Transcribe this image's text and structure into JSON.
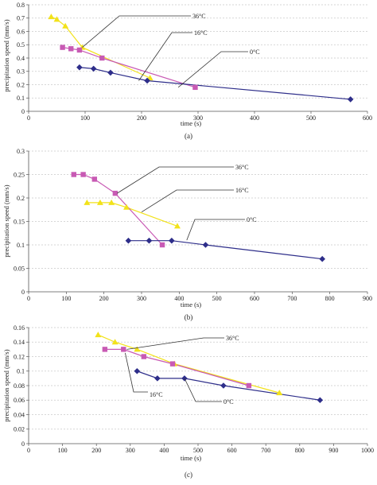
{
  "colors": {
    "deg0": "#2e2e8a",
    "deg16": "#c85ab4",
    "deg36": "#f2e21a",
    "connector16": "#d08040",
    "grid": "#c9c9c9",
    "axis": "#555555",
    "callout": "#333333"
  },
  "markers": {
    "0°C": "diamond",
    "16°C": "square",
    "36°C": "triangle"
  },
  "chart_data": [
    {
      "panel_label": "(a)",
      "type": "line",
      "xlabel": "time (s)",
      "ylabel": "precipitation speed (mm/s)",
      "xlim": [
        0,
        600
      ],
      "ylim": [
        0,
        0.8
      ],
      "xticks": [
        0,
        100,
        200,
        300,
        400,
        500,
        600
      ],
      "yticks": [
        0,
        0.1,
        0.2,
        0.3,
        0.4,
        0.5,
        0.6,
        0.7,
        0.8
      ],
      "ytick_labels": [
        "0",
        "0.1",
        "0.2",
        "0.3",
        "0.4",
        "0.5",
        "0.6",
        "0.7",
        "0.8"
      ],
      "grid": "horizontal dashed",
      "series": [
        {
          "name": "0°C",
          "x": [
            90,
            115,
            145,
            210,
            570
          ],
          "y": [
            0.33,
            0.32,
            0.29,
            0.23,
            0.09
          ]
        },
        {
          "name": "16°C",
          "x": [
            60,
            75,
            90,
            130,
            295
          ],
          "y": [
            0.48,
            0.47,
            0.46,
            0.4,
            0.18
          ]
        },
        {
          "name": "36°C",
          "x": [
            40,
            50,
            65,
            95,
            215
          ],
          "y": [
            0.71,
            0.69,
            0.64,
            0.48,
            0.25
          ]
        }
      ],
      "labels": [
        "36°C",
        "16°C",
        "0°C"
      ],
      "label_targets": [
        {
          "x": 95,
          "y": 0.48
        },
        {
          "x": 195,
          "y": 0.23
        },
        {
          "x": 265,
          "y": 0.18
        }
      ]
    },
    {
      "panel_label": "(b)",
      "type": "line",
      "xlabel": "time (s)",
      "ylabel": "precipitation speed (mm/s)",
      "xlim": [
        0,
        900
      ],
      "ylim": [
        0,
        0.3
      ],
      "xticks": [
        0,
        100,
        200,
        300,
        400,
        500,
        600,
        700,
        800,
        900
      ],
      "yticks": [
        0,
        0.05,
        0.1,
        0.15,
        0.2,
        0.25,
        0.3
      ],
      "ytick_labels": [
        "0",
        "0.05",
        "0.1",
        "0.15",
        "0.2",
        "0.25",
        "0.3"
      ],
      "grid": "horizontal dashed",
      "series": [
        {
          "name": "0°C",
          "x": [
            265,
            320,
            380,
            470,
            780
          ],
          "y": [
            0.109,
            0.109,
            0.109,
            0.1,
            0.07
          ]
        },
        {
          "name": "16°C",
          "x": [
            120,
            145,
            175,
            230,
            355
          ],
          "y": [
            0.25,
            0.25,
            0.24,
            0.21,
            0.1
          ]
        },
        {
          "name": "36°C",
          "x": [
            155,
            190,
            220,
            260,
            395
          ],
          "y": [
            0.19,
            0.19,
            0.19,
            0.18,
            0.14
          ]
        }
      ],
      "labels": [
        "36°C",
        "16°C",
        "0°C"
      ],
      "label_targets": [
        {
          "x": 235,
          "y": 0.21
        },
        {
          "x": 300,
          "y": 0.17
        },
        {
          "x": 420,
          "y": 0.11
        }
      ]
    },
    {
      "panel_label": "(c)",
      "type": "line",
      "xlabel": "time (s)",
      "ylabel": "precipitation speed (mm/s)",
      "xlim": [
        0,
        1000
      ],
      "ylim": [
        0,
        0.16
      ],
      "xticks": [
        0,
        100,
        200,
        300,
        400,
        500,
        600,
        700,
        800,
        900,
        1000
      ],
      "yticks": [
        0,
        0.02,
        0.04,
        0.06,
        0.08,
        0.1,
        0.12,
        0.14,
        0.16
      ],
      "ytick_labels": [
        "0",
        "0.02",
        "0.04",
        "0.06",
        "0.08",
        "0.1",
        "0.12",
        "0.14",
        "0.16"
      ],
      "grid": "horizontal dashed",
      "series": [
        {
          "name": "0°C",
          "x": [
            320,
            380,
            460,
            575,
            860
          ],
          "y": [
            0.1,
            0.09,
            0.09,
            0.08,
            0.06
          ]
        },
        {
          "name": "16°C",
          "x": [
            225,
            280,
            340,
            425,
            650
          ],
          "y": [
            0.13,
            0.13,
            0.12,
            0.11,
            0.08
          ]
        },
        {
          "name": "36°C",
          "x": [
            205,
            255,
            320,
            430,
            740
          ],
          "y": [
            0.15,
            0.14,
            0.13,
            0.11,
            0.07
          ]
        }
      ],
      "labels": [
        "36°C",
        "16°C",
        "0°C"
      ],
      "label_targets": [
        {
          "x": 290,
          "y": 0.13
        },
        {
          "x": 285,
          "y": 0.125
        },
        {
          "x": 460,
          "y": 0.09
        }
      ]
    }
  ]
}
